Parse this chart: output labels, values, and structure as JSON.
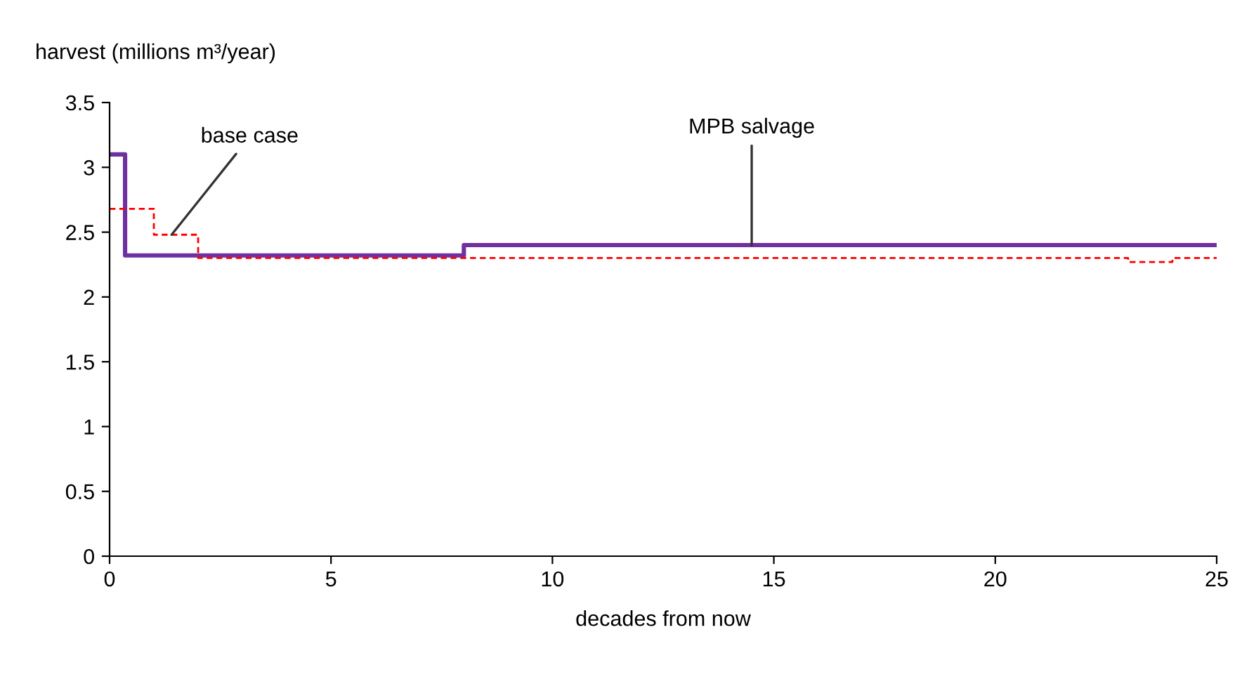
{
  "chart_data": {
    "type": "step",
    "ylabel": "harvest (millions m³/year)",
    "xlabel": "decades from now",
    "series": [
      {
        "color": "#7030a0",
        "line_style": "solid",
        "x": [
          0,
          0.35,
          8,
          25
        ],
        "values": [
          3.1,
          2.32,
          2.4,
          2.4
        ]
      },
      {
        "color": "#ff0000",
        "line_style": "dashed",
        "x": [
          0,
          1,
          2,
          23,
          24,
          25
        ],
        "values": [
          2.68,
          2.48,
          2.3,
          2.27,
          2.3,
          2.3
        ]
      }
    ],
    "annotations": [
      {
        "text": "MPB salvage",
        "x": 14.5,
        "y": 2.4
      },
      {
        "text": "base case",
        "x": 1.4,
        "y": 2.48
      }
    ],
    "xlim": [
      0,
      25
    ],
    "xticks": [
      0,
      5,
      10,
      15,
      20,
      25
    ],
    "ylim": [
      0,
      3.5
    ],
    "yticks": [
      0,
      0.5,
      1,
      1.5,
      2,
      2.5,
      3,
      3.5
    ],
    "grid": false,
    "legend": false,
    "marker": "none"
  }
}
